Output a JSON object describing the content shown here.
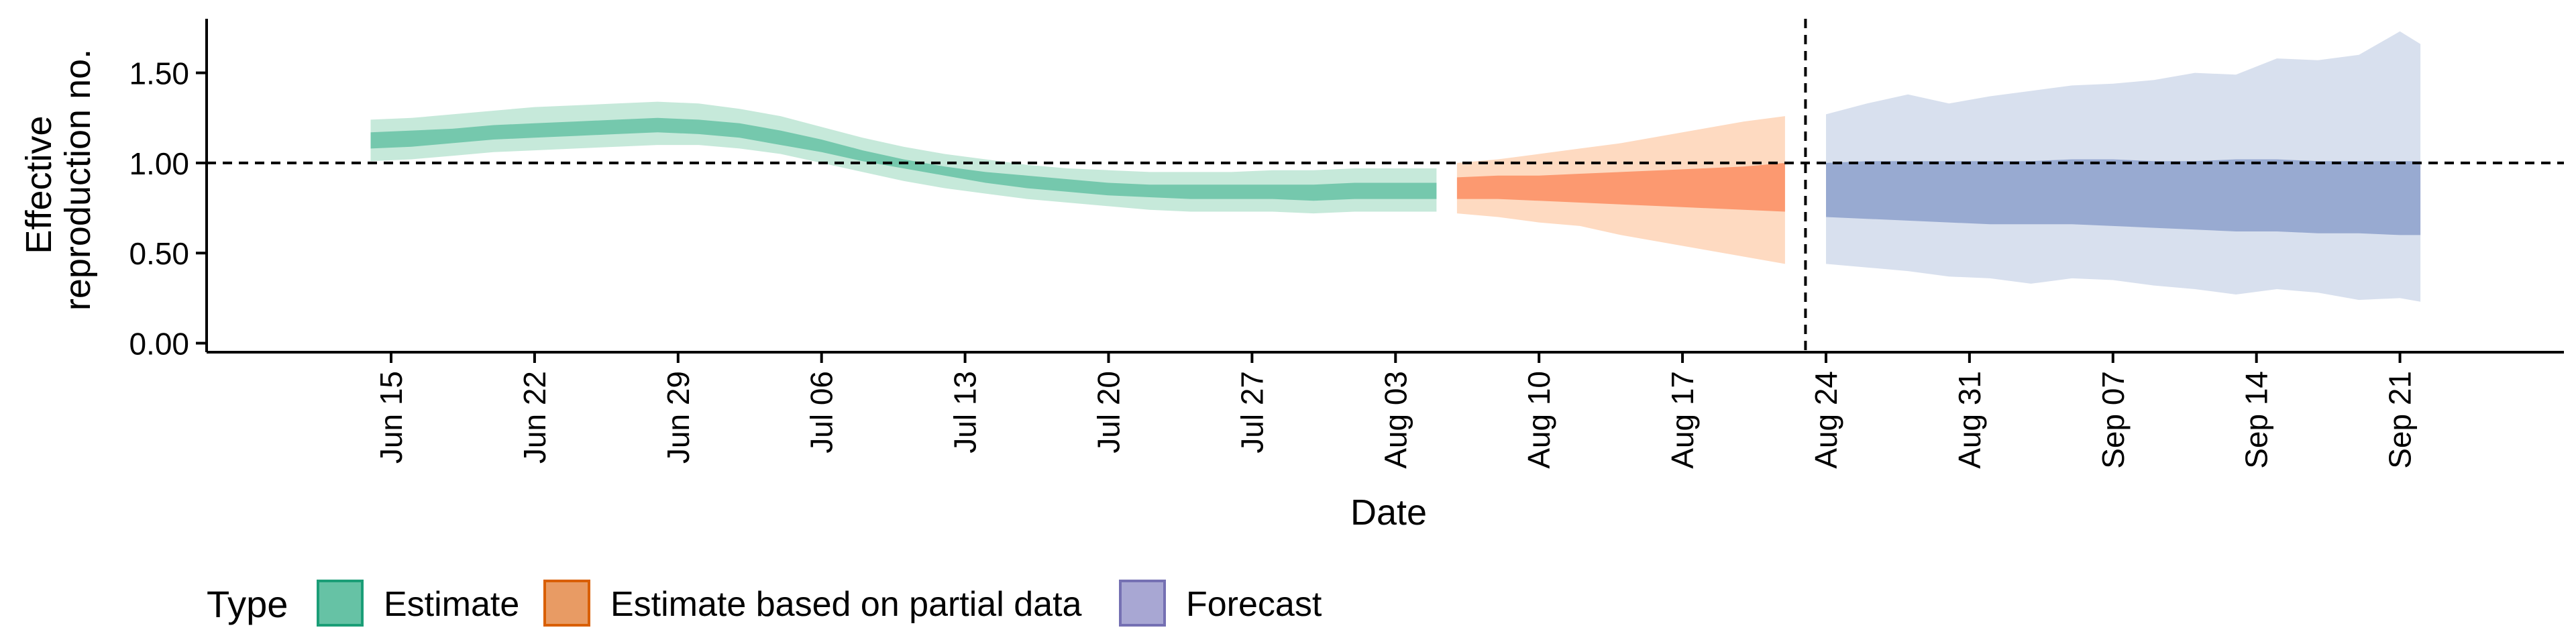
{
  "chart_data": {
    "type": "area",
    "xlabel": "Date",
    "ylabel_lines": [
      "Effective",
      "reproduction no."
    ],
    "ylim": [
      -0.05,
      1.8
    ],
    "xlim": [
      "2020-06-06",
      "2020-09-29"
    ],
    "y_ticks": [
      "0.00",
      "0.50",
      "1.00",
      "1.50"
    ],
    "x_tick_dates": [
      "2020-06-15",
      "2020-06-22",
      "2020-06-29",
      "2020-07-06",
      "2020-07-13",
      "2020-07-20",
      "2020-07-27",
      "2020-08-03",
      "2020-08-10",
      "2020-08-17",
      "2020-08-24",
      "2020-08-31",
      "2020-09-07",
      "2020-09-14",
      "2020-09-21"
    ],
    "x_tick_labels": [
      "Jun 15",
      "Jun 22",
      "Jun 29",
      "Jul 06",
      "Jul 13",
      "Jul 20",
      "Jul 27",
      "Aug 03",
      "Aug 10",
      "Aug 17",
      "Aug 24",
      "Aug 31",
      "Sep 07",
      "Sep 14",
      "Sep 21"
    ],
    "reference_line_y": 1.0,
    "reference_line_date": "2020-08-23",
    "legend": {
      "title": "Type",
      "position": "bottom",
      "entries": [
        "Estimate",
        "Estimate based on partial data",
        "Forecast"
      ]
    },
    "series": [
      {
        "name": "Estimate",
        "outer_color": "#b3e2cd",
        "inner_color": "#66c2a5",
        "x": [
          "2020-06-14",
          "2020-06-16",
          "2020-06-18",
          "2020-06-20",
          "2020-06-22",
          "2020-06-24",
          "2020-06-26",
          "2020-06-28",
          "2020-06-30",
          "2020-07-02",
          "2020-07-04",
          "2020-07-06",
          "2020-07-08",
          "2020-07-10",
          "2020-07-12",
          "2020-07-14",
          "2020-07-16",
          "2020-07-18",
          "2020-07-20",
          "2020-07-22",
          "2020-07-24",
          "2020-07-26",
          "2020-07-28",
          "2020-07-30",
          "2020-08-01",
          "2020-08-03",
          "2020-08-05"
        ],
        "outer_lo": [
          1.01,
          1.02,
          1.04,
          1.06,
          1.07,
          1.08,
          1.09,
          1.1,
          1.1,
          1.08,
          1.05,
          1.0,
          0.95,
          0.9,
          0.86,
          0.83,
          0.8,
          0.78,
          0.76,
          0.74,
          0.73,
          0.73,
          0.73,
          0.72,
          0.73,
          0.73,
          0.73
        ],
        "inner_lo": [
          1.08,
          1.09,
          1.11,
          1.13,
          1.14,
          1.15,
          1.16,
          1.17,
          1.16,
          1.14,
          1.1,
          1.06,
          1.01,
          0.97,
          0.93,
          0.89,
          0.86,
          0.84,
          0.82,
          0.81,
          0.8,
          0.8,
          0.8,
          0.79,
          0.8,
          0.8,
          0.8
        ],
        "inner_hi": [
          1.17,
          1.18,
          1.19,
          1.21,
          1.22,
          1.23,
          1.24,
          1.25,
          1.24,
          1.22,
          1.18,
          1.13,
          1.07,
          1.02,
          0.98,
          0.95,
          0.93,
          0.91,
          0.89,
          0.88,
          0.88,
          0.88,
          0.88,
          0.88,
          0.89,
          0.89,
          0.89
        ],
        "outer_hi": [
          1.24,
          1.25,
          1.27,
          1.29,
          1.31,
          1.32,
          1.33,
          1.34,
          1.33,
          1.3,
          1.26,
          1.2,
          1.14,
          1.09,
          1.05,
          1.02,
          0.99,
          0.97,
          0.96,
          0.95,
          0.95,
          0.95,
          0.96,
          0.96,
          0.97,
          0.97,
          0.97
        ]
      },
      {
        "name": "Estimate based on partial data",
        "outer_color": "#fdcdac",
        "inner_color": "#fc8d62",
        "x": [
          "2020-08-06",
          "2020-08-08",
          "2020-08-10",
          "2020-08-12",
          "2020-08-14",
          "2020-08-16",
          "2020-08-18",
          "2020-08-20",
          "2020-08-22"
        ],
        "outer_lo": [
          0.72,
          0.7,
          0.67,
          0.65,
          0.6,
          0.56,
          0.52,
          0.48,
          0.44
        ],
        "inner_lo": [
          0.8,
          0.8,
          0.79,
          0.78,
          0.77,
          0.76,
          0.75,
          0.74,
          0.73
        ],
        "inner_hi": [
          0.92,
          0.93,
          0.93,
          0.94,
          0.95,
          0.96,
          0.97,
          0.98,
          1.0
        ],
        "outer_hi": [
          1.0,
          1.02,
          1.05,
          1.08,
          1.11,
          1.15,
          1.19,
          1.23,
          1.26
        ]
      },
      {
        "name": "Forecast",
        "outer_color": "#cbd5e8",
        "inner_color": "#8da0cb",
        "x": [
          "2020-08-24",
          "2020-08-26",
          "2020-08-28",
          "2020-08-30",
          "2020-09-01",
          "2020-09-03",
          "2020-09-05",
          "2020-09-07",
          "2020-09-09",
          "2020-09-11",
          "2020-09-13",
          "2020-09-15",
          "2020-09-17",
          "2020-09-19",
          "2020-09-21",
          "2020-09-22"
        ],
        "outer_lo": [
          0.44,
          0.42,
          0.4,
          0.37,
          0.36,
          0.33,
          0.36,
          0.35,
          0.32,
          0.3,
          0.27,
          0.3,
          0.28,
          0.24,
          0.25,
          0.23
        ],
        "inner_lo": [
          0.7,
          0.69,
          0.68,
          0.67,
          0.66,
          0.66,
          0.66,
          0.65,
          0.64,
          0.63,
          0.62,
          0.62,
          0.61,
          0.61,
          0.6,
          0.6
        ],
        "inner_hi": [
          1.0,
          1.01,
          1.01,
          1.01,
          1.01,
          1.01,
          1.02,
          1.02,
          1.01,
          1.01,
          1.02,
          1.02,
          1.01,
          1.01,
          1.01,
          1.01
        ],
        "outer_hi": [
          1.27,
          1.33,
          1.38,
          1.33,
          1.37,
          1.4,
          1.43,
          1.44,
          1.46,
          1.5,
          1.49,
          1.58,
          1.57,
          1.6,
          1.73,
          1.66
        ]
      }
    ]
  }
}
